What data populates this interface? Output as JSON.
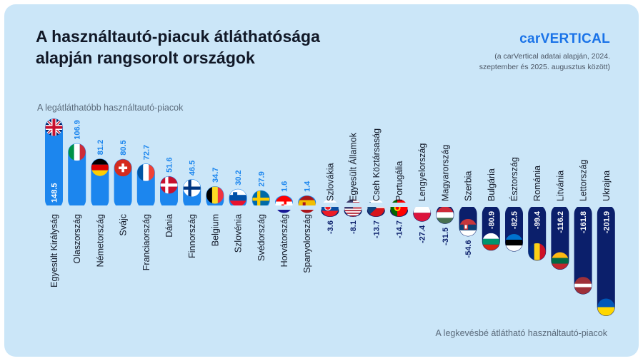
{
  "title_line1": "A használtautó-piacuk átláthatósága",
  "title_line2": "alapján rangsorolt országok",
  "brand": "carVERTICAL",
  "source_line1": "(a carVertical adatai alapján, 2024.",
  "source_line2": "szeptember és 2025. augusztus között)",
  "hint_top": "A legátláthatóbb használtautó-piacok",
  "hint_bottom": "A legkevésbé átlátható használtautó-piacok",
  "colors": {
    "background": "#cbe6f8",
    "positive": "#1c86ee",
    "negative": "#0b1f6b",
    "positive_label": "#1c86ee"
  },
  "chart_data": {
    "type": "bar",
    "categories": [
      "Egyesült Királyság",
      "Olaszország",
      "Németország",
      "Svájc",
      "Franciaország",
      "Dánia",
      "Finnország",
      "Belgium",
      "Szlovénia",
      "Svédország",
      "Horvátország",
      "Spanyolország",
      "Szlovákia",
      "Egyesült Államok",
      "Cseh Köztársaság",
      "Portugália",
      "Lengyelország",
      "Magyarország",
      "Szerbia",
      "Bulgária",
      "Észtország",
      "Románia",
      "Litvánia",
      "Lettország",
      "Ukrajna"
    ],
    "values": [
      148.5,
      106.9,
      81.2,
      80.5,
      72.7,
      51.6,
      46.5,
      34.7,
      30.2,
      27.9,
      1.6,
      1.4,
      -3.6,
      -8.1,
      -13.7,
      -14.7,
      -27.4,
      -31.5,
      -54.6,
      -80.9,
      -82.5,
      -99.4,
      -116.2,
      -161.8,
      -201.9
    ],
    "value_labels": [
      "148.5",
      "106.9",
      "81.2",
      "80.5",
      "72.7",
      "51.6",
      "46.5",
      "34.7",
      "30.2",
      "27.9",
      "1.6",
      "1.4",
      "-3.6",
      "-8.1",
      "-13.7",
      "-14.7",
      "-27.4",
      "-31.5",
      "-54.6",
      "-80.9",
      "-82.5",
      "-99.4",
      "-116.2",
      "-161.8",
      "-201.9"
    ],
    "flag_icons": [
      "uk-flag-icon",
      "italy-flag-icon",
      "germany-flag-icon",
      "switzerland-flag-icon",
      "france-flag-icon",
      "denmark-flag-icon",
      "finland-flag-icon",
      "belgium-flag-icon",
      "slovenia-flag-icon",
      "sweden-flag-icon",
      "croatia-flag-icon",
      "spain-flag-icon",
      "slovakia-flag-icon",
      "usa-flag-icon",
      "czechia-flag-icon",
      "portugal-flag-icon",
      "poland-flag-icon",
      "hungary-flag-icon",
      "serbia-flag-icon",
      "bulgaria-flag-icon",
      "estonia-flag-icon",
      "romania-flag-icon",
      "lithuania-flag-icon",
      "latvia-flag-icon",
      "ukraine-flag-icon"
    ],
    "ylim": [
      -201.9,
      148.5
    ],
    "grid": false,
    "legend": "none"
  }
}
